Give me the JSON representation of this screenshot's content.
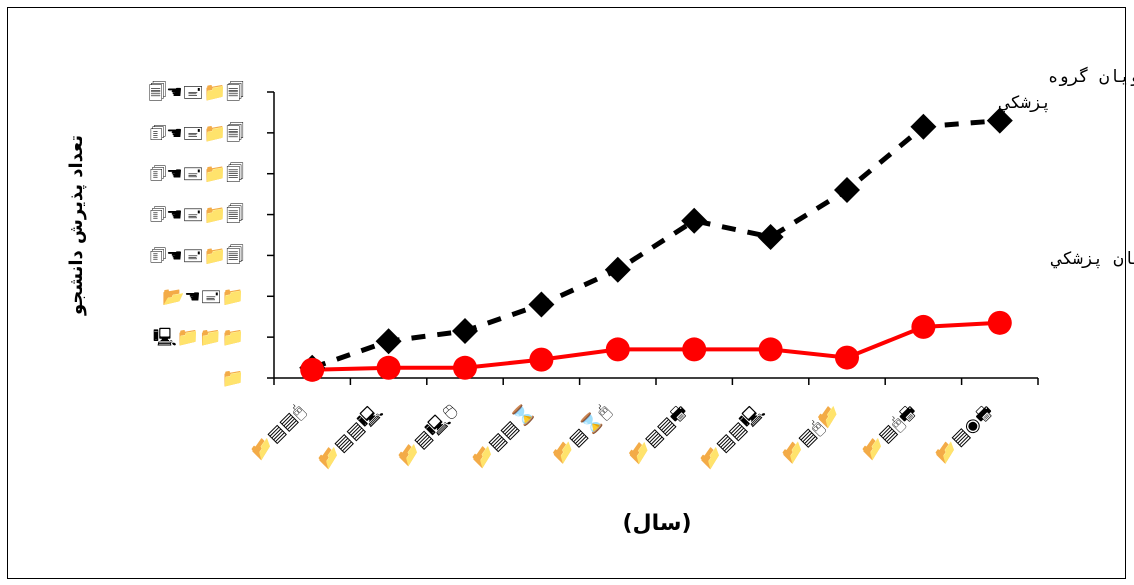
{
  "chart_data": {
    "type": "line",
    "title": "",
    "xlabel": "(سال)",
    "ylabel": "تعداد پذيرش دانشجو",
    "categories": [
      "📂▤▤🖰",
      "📂▤▤🖳",
      "📂▤🖳🖰",
      "📂▤▤⌛",
      "📂▤⌛🖰",
      "📂▤▤🖶",
      "📂▤▤🖳",
      "📂▤🖰📂",
      "📂▤🖰🖶",
      "📂▤◉🖶"
    ],
    "y_tick_labels": [
      "📁",
      "🖳📁📁📁",
      "📂☚🖃📁",
      "🗊☚🖃📁🗐",
      "🗊☚🖃📁🗐",
      "🗊☚🖃📁🗐",
      "🗊☚🖃📁🗐",
      "🗐☚🖃📁🗐"
    ],
    "ylim": [
      0,
      7
    ],
    "grid": false,
    "series": [
      {
        "name": "كل دانشجويان گروه پزشكي",
        "style": "dotted",
        "marker": "diamond",
        "color": "#000000",
        "values": [
          0.25,
          0.9,
          1.15,
          1.8,
          2.65,
          3.85,
          3.45,
          4.6,
          6.15,
          6.3
        ]
      },
      {
        "name": "دانشجويان پزشكي",
        "style": "solid",
        "marker": "circle",
        "color": "#ff0000",
        "values": [
          0.2,
          0.25,
          0.25,
          0.45,
          0.7,
          0.7,
          0.7,
          0.5,
          1.25,
          1.35
        ]
      }
    ]
  }
}
